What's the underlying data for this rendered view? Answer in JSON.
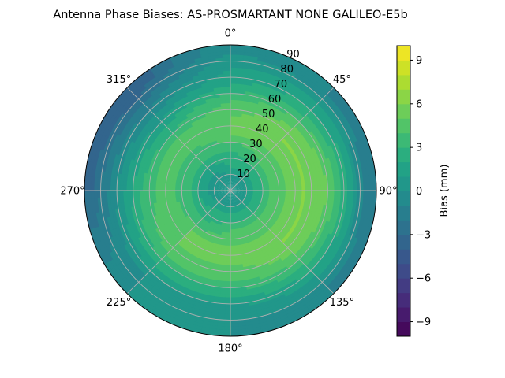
{
  "chart_data": {
    "type": "heatmap",
    "projection": "polar",
    "title": "Antenna Phase Biases: AS-PROSMARTANT  NONE GALILEO-E5b",
    "angular_axis": {
      "zero_location": "top",
      "direction": "clockwise",
      "tick_labels": [
        "0°",
        "45°",
        "90°",
        "135°",
        "180°",
        "225°",
        "270°",
        "315°"
      ],
      "tick_values": [
        0,
        45,
        90,
        135,
        180,
        225,
        270,
        315
      ]
    },
    "radial_axis": {
      "range": [
        0,
        90
      ],
      "tick_values": [
        10,
        20,
        30,
        40,
        50,
        60,
        70,
        80,
        90
      ],
      "tick_labels": [
        "10",
        "20",
        "30",
        "40",
        "50",
        "60",
        "70",
        "80",
        "90"
      ],
      "label_angle_deg": 22.5
    },
    "grid": true,
    "colorbar": {
      "label": "Bias (mm)",
      "range": [
        -10,
        10
      ],
      "tick_values": [
        -9,
        -6,
        -3,
        0,
        3,
        6,
        9
      ],
      "tick_labels": [
        "−9",
        "−6",
        "−3",
        "0",
        "3",
        "6",
        "9"
      ],
      "level_step": 1,
      "colormap": "viridis"
    },
    "field": {
      "description_values_mm": "approximate bias levels by zenith ring and azimuth",
      "zenith_rings": [
        5,
        15,
        25,
        35,
        45,
        55,
        65,
        75,
        85
      ],
      "azimuths": [
        0,
        45,
        90,
        135,
        180,
        225,
        270,
        315
      ],
      "values": [
        [
          0,
          0,
          0,
          0,
          0,
          0,
          0,
          0
        ],
        [
          2,
          2,
          2,
          2,
          2,
          2,
          1,
          1
        ],
        [
          3,
          4,
          4,
          4,
          4,
          3,
          3,
          3
        ],
        [
          5,
          5,
          5,
          5,
          5,
          5,
          4,
          4
        ],
        [
          5,
          6,
          6,
          6,
          5,
          5,
          4,
          4
        ],
        [
          4,
          5,
          6,
          5,
          4,
          4,
          3,
          2
        ],
        [
          2,
          3,
          4,
          3,
          2,
          2,
          1,
          0
        ],
        [
          1,
          1,
          1,
          1,
          0,
          0,
          -1,
          -2
        ],
        [
          0,
          -1,
          -2,
          -1,
          0,
          0,
          -3,
          -4
        ]
      ]
    }
  },
  "colors": {
    "grid": "#b0b0b0",
    "axes_edge": "#000000"
  }
}
